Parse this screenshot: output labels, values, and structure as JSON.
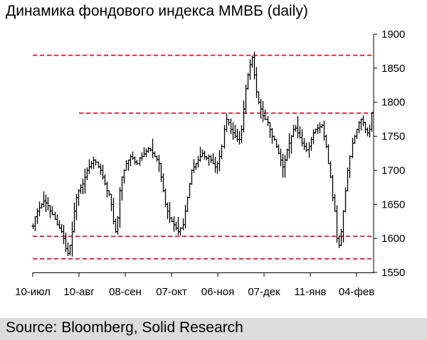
{
  "title": "Динамика фондового индекса ММВБ (daily)",
  "source": "Source: Bloomberg, Solid Research",
  "colors": {
    "bars": "#000000",
    "levels": "#e8001c",
    "footer_bg": "#dcdcdc"
  },
  "chart_data": {
    "type": "bar",
    "subtype": "ohlc",
    "title": "Динамика фондового индекса ММВБ (daily)",
    "xlabel": "",
    "ylabel": "",
    "ylim": [
      1550,
      1900
    ],
    "yticks": [
      1550,
      1600,
      1650,
      1700,
      1750,
      1800,
      1850,
      1900
    ],
    "xticks": [
      "10-июл",
      "10-авг",
      "08-сен",
      "07-окт",
      "06-ноя",
      "07-дек",
      "11-янв",
      "04-фев"
    ],
    "grid": false,
    "legend": "none",
    "levels": [
      {
        "value": 1869,
        "from": "10-июл",
        "to": "04-фев"
      },
      {
        "value": 1784,
        "from": "10-авг",
        "to": "04-фев"
      },
      {
        "value": 1603,
        "from": "10-июл",
        "to": "04-фев"
      },
      {
        "value": 1570,
        "from": "10-июл",
        "to": "04-фев"
      }
    ],
    "series": [
      {
        "values": [
          1618,
          1632,
          1640,
          1645,
          1650,
          1655,
          1652,
          1648,
          1640,
          1635,
          1628,
          1620,
          1615,
          1610,
          1600,
          1585,
          1578,
          1590,
          1610,
          1640,
          1660,
          1670,
          1675,
          1680,
          1690,
          1700,
          1705,
          1710,
          1715,
          1712,
          1705,
          1700,
          1690,
          1680,
          1670,
          1665,
          1650,
          1625,
          1610,
          1630,
          1670,
          1690,
          1700,
          1710,
          1715,
          1720,
          1718,
          1712,
          1710,
          1718,
          1720,
          1724,
          1728,
          1732,
          1730,
          1725,
          1720,
          1716,
          1710,
          1690,
          1670,
          1650,
          1640,
          1630,
          1625,
          1620,
          1615,
          1610,
          1615,
          1620,
          1640,
          1660,
          1680,
          1700,
          1705,
          1710,
          1715,
          1720,
          1725,
          1720,
          1718,
          1720,
          1715,
          1710,
          1705,
          1710,
          1720,
          1735,
          1760,
          1775,
          1770,
          1760,
          1755,
          1750,
          1745,
          1745,
          1760,
          1790,
          1820,
          1840,
          1855,
          1866,
          1840,
          1815,
          1800,
          1790,
          1780,
          1775,
          1770,
          1760,
          1750,
          1745,
          1735,
          1725,
          1715,
          1705,
          1715,
          1730,
          1740,
          1750,
          1760,
          1762,
          1755,
          1748,
          1740,
          1735,
          1730,
          1735,
          1745,
          1755,
          1760,
          1762,
          1764,
          1766,
          1750,
          1735,
          1710,
          1690,
          1660,
          1640,
          1600,
          1590,
          1610,
          1640,
          1670,
          1700,
          1720,
          1740,
          1750,
          1760,
          1770,
          1775,
          1770,
          1760,
          1755,
          1760,
          1785
        ]
      }
    ]
  }
}
